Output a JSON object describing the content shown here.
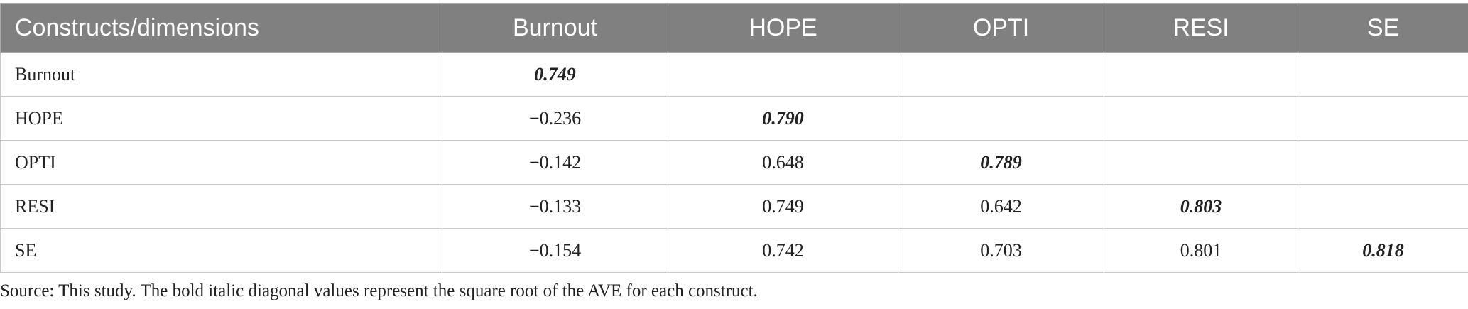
{
  "table": {
    "columns": [
      "Constructs/dimensions",
      "Burnout",
      "HOPE",
      "OPTI",
      "RESI",
      "SE"
    ],
    "rows": [
      [
        "Burnout",
        "0.749",
        null,
        null,
        null,
        null
      ],
      [
        "HOPE",
        "−0.236",
        "0.790",
        null,
        null,
        null
      ],
      [
        "OPTI",
        "−0.142",
        "0.648",
        "0.789",
        null,
        null
      ],
      [
        "RESI",
        "−0.133",
        "0.749",
        "0.642",
        "0.803",
        null
      ],
      [
        "SE",
        "−0.154",
        "0.742",
        "0.703",
        "0.801",
        "0.818"
      ]
    ]
  },
  "note": "Source: This study. The bold italic diagonal values represent the square root of the AVE for each construct."
}
